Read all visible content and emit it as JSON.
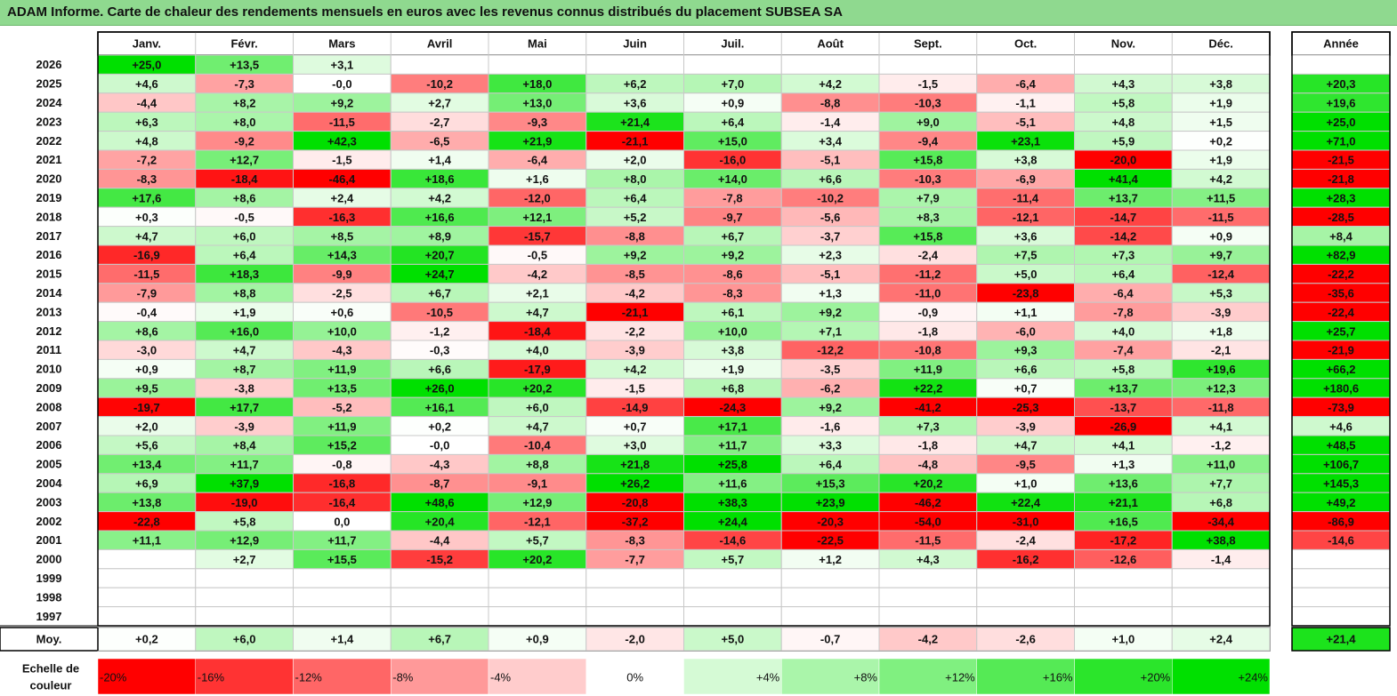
{
  "title": "ADAM Informe. Carte de chaleur des rendements mensuels en euros avec les revenus connus distribués du placement SUBSEA SA",
  "chart_data": {
    "type": "heatmap",
    "columns": [
      "Janv.",
      "Févr.",
      "Mars",
      "Avril",
      "Mai",
      "Juin",
      "Juil.",
      "Août",
      "Sept.",
      "Oct.",
      "Nov.",
      "Déc."
    ],
    "annual_header": "Année",
    "rows": [
      {
        "year": "2026",
        "cells": [
          "+25,0",
          "+13,5",
          "+3,1",
          "",
          "",
          "",
          "",
          "",
          "",
          "",
          "",
          ""
        ],
        "annual": ""
      },
      {
        "year": "2025",
        "cells": [
          "+4,6",
          "-7,3",
          "-0,0",
          "-10,2",
          "+18,0",
          "+6,2",
          "+7,0",
          "+4,2",
          "-1,5",
          "-6,4",
          "+4,3",
          "+3,8"
        ],
        "annual": "+20,3"
      },
      {
        "year": "2024",
        "cells": [
          "-4,4",
          "+8,2",
          "+9,2",
          "+2,7",
          "+13,0",
          "+3,6",
          "+0,9",
          "-8,8",
          "-10,3",
          "-1,1",
          "+5,8",
          "+1,9"
        ],
        "annual": "+19,6"
      },
      {
        "year": "2023",
        "cells": [
          "+6,3",
          "+8,0",
          "-11,5",
          "-2,7",
          "-9,3",
          "+21,4",
          "+6,4",
          "-1,4",
          "+9,0",
          "-5,1",
          "+4,8",
          "+1,5"
        ],
        "annual": "+25,0"
      },
      {
        "year": "2022",
        "cells": [
          "+4,8",
          "-9,2",
          "+42,3",
          "-6,5",
          "+21,9",
          "-21,1",
          "+15,0",
          "+3,4",
          "-9,4",
          "+23,1",
          "+5,9",
          "+0,2"
        ],
        "annual": "+71,0"
      },
      {
        "year": "2021",
        "cells": [
          "-7,2",
          "+12,7",
          "-1,5",
          "+1,4",
          "-6,4",
          "+2,0",
          "-16,0",
          "-5,1",
          "+15,8",
          "+3,8",
          "-20,0",
          "+1,9"
        ],
        "annual": "-21,5"
      },
      {
        "year": "2020",
        "cells": [
          "-8,3",
          "-18,4",
          "-46,4",
          "+18,6",
          "+1,6",
          "+8,0",
          "+14,0",
          "+6,6",
          "-10,3",
          "-6,9",
          "+41,4",
          "+4,2"
        ],
        "annual": "-21,8"
      },
      {
        "year": "2019",
        "cells": [
          "+17,6",
          "+8,6",
          "+2,4",
          "+4,2",
          "-12,0",
          "+6,4",
          "-7,8",
          "-10,2",
          "+7,9",
          "-11,4",
          "+13,7",
          "+11,5"
        ],
        "annual": "+28,3"
      },
      {
        "year": "2018",
        "cells": [
          "+0,3",
          "-0,5",
          "-16,3",
          "+16,6",
          "+12,1",
          "+5,2",
          "-9,7",
          "-5,6",
          "+8,3",
          "-12,1",
          "-14,7",
          "-11,5"
        ],
        "annual": "-28,5"
      },
      {
        "year": "2017",
        "cells": [
          "+4,7",
          "+6,0",
          "+8,5",
          "+8,9",
          "-15,7",
          "-8,8",
          "+6,7",
          "-3,7",
          "+15,8",
          "+3,6",
          "-14,2",
          "+0,9"
        ],
        "annual": "+8,4"
      },
      {
        "year": "2016",
        "cells": [
          "-16,9",
          "+6,4",
          "+14,3",
          "+20,7",
          "-0,5",
          "+9,2",
          "+9,2",
          "+2,3",
          "-2,4",
          "+7,5",
          "+7,3",
          "+9,7"
        ],
        "annual": "+82,9"
      },
      {
        "year": "2015",
        "cells": [
          "-11,5",
          "+18,3",
          "-9,9",
          "+24,7",
          "-4,2",
          "-8,5",
          "-8,6",
          "-5,1",
          "-11,2",
          "+5,0",
          "+6,4",
          "-12,4"
        ],
        "annual": "-22,2"
      },
      {
        "year": "2014",
        "cells": [
          "-7,9",
          "+8,8",
          "-2,5",
          "+6,7",
          "+2,1",
          "-4,2",
          "-8,3",
          "+1,3",
          "-11,0",
          "-23,8",
          "-6,4",
          "+5,3"
        ],
        "annual": "-35,6"
      },
      {
        "year": "2013",
        "cells": [
          "-0,4",
          "+1,9",
          "+0,6",
          "-10,5",
          "+4,7",
          "-21,1",
          "+6,1",
          "+9,2",
          "-0,9",
          "+1,1",
          "-7,8",
          "-3,9"
        ],
        "annual": "-22,4"
      },
      {
        "year": "2012",
        "cells": [
          "+8,6",
          "+16,0",
          "+10,0",
          "-1,2",
          "-18,4",
          "-2,2",
          "+10,0",
          "+7,1",
          "-1,8",
          "-6,0",
          "+4,0",
          "+1,8"
        ],
        "annual": "+25,7"
      },
      {
        "year": "2011",
        "cells": [
          "-3,0",
          "+4,7",
          "-4,3",
          "-0,3",
          "+4,0",
          "-3,9",
          "+3,8",
          "-12,2",
          "-10,8",
          "+9,3",
          "-7,4",
          "-2,1"
        ],
        "annual": "-21,9"
      },
      {
        "year": "2010",
        "cells": [
          "+0,9",
          "+8,7",
          "+11,9",
          "+6,6",
          "-17,9",
          "+4,2",
          "+1,9",
          "-3,5",
          "+11,9",
          "+6,6",
          "+5,8",
          "+19,6"
        ],
        "annual": "+66,2"
      },
      {
        "year": "2009",
        "cells": [
          "+9,5",
          "-3,8",
          "+13,5",
          "+26,0",
          "+20,2",
          "-1,5",
          "+6,8",
          "-6,2",
          "+22,2",
          "+0,7",
          "+13,7",
          "+12,3"
        ],
        "annual": "+180,6"
      },
      {
        "year": "2008",
        "cells": [
          "-19,7",
          "+17,7",
          "-5,2",
          "+16,1",
          "+6,0",
          "-14,9",
          "-24,3",
          "+9,2",
          "-41,2",
          "-25,3",
          "-13,7",
          "-11,8"
        ],
        "annual": "-73,9"
      },
      {
        "year": "2007",
        "cells": [
          "+2,0",
          "-3,9",
          "+11,9",
          "+0,2",
          "+4,7",
          "+0,7",
          "+17,1",
          "-1,6",
          "+7,3",
          "-3,9",
          "-26,9",
          "+4,1"
        ],
        "annual": "+4,6"
      },
      {
        "year": "2006",
        "cells": [
          "+5,6",
          "+8,4",
          "+15,2",
          "-0,0",
          "-10,4",
          "+3,0",
          "+11,7",
          "+3,3",
          "-1,8",
          "+4,7",
          "+4,1",
          "-1,2"
        ],
        "annual": "+48,5"
      },
      {
        "year": "2005",
        "cells": [
          "+13,4",
          "+11,7",
          "-0,8",
          "-4,3",
          "+8,8",
          "+21,8",
          "+25,8",
          "+6,4",
          "-4,8",
          "-9,5",
          "+1,3",
          "+11,0"
        ],
        "annual": "+106,7"
      },
      {
        "year": "2004",
        "cells": [
          "+6,9",
          "+37,9",
          "-16,8",
          "-8,7",
          "-9,1",
          "+26,2",
          "+11,6",
          "+15,3",
          "+20,2",
          "+1,0",
          "+13,6",
          "+7,7"
        ],
        "annual": "+145,3"
      },
      {
        "year": "2003",
        "cells": [
          "+13,8",
          "-19,0",
          "-16,4",
          "+48,6",
          "+12,9",
          "-20,8",
          "+38,3",
          "+23,9",
          "-46,2",
          "+22,4",
          "+21,1",
          "+6,8"
        ],
        "annual": "+49,2"
      },
      {
        "year": "2002",
        "cells": [
          "-22,8",
          "+5,8",
          "0,0",
          "+20,4",
          "-12,1",
          "-37,2",
          "+24,4",
          "-20,3",
          "-54,0",
          "-31,0",
          "+16,5",
          "-34,4"
        ],
        "annual": "-86,9"
      },
      {
        "year": "2001",
        "cells": [
          "+11,1",
          "+12,9",
          "+11,7",
          "-4,4",
          "+5,7",
          "-8,3",
          "-14,6",
          "-22,5",
          "-11,5",
          "-2,4",
          "-17,2",
          "+38,8"
        ],
        "annual": "-14,6"
      },
      {
        "year": "2000",
        "cells": [
          "",
          "+2,7",
          "+15,5",
          "-15,2",
          "+20,2",
          "-7,7",
          "+5,7",
          "+1,2",
          "+4,3",
          "-16,2",
          "-12,6",
          "-1,4"
        ],
        "annual": ""
      },
      {
        "year": "1999",
        "cells": [
          "",
          "",
          "",
          "",
          "",
          "",
          "",
          "",
          "",
          "",
          "",
          ""
        ],
        "annual": ""
      },
      {
        "year": "1998",
        "cells": [
          "",
          "",
          "",
          "",
          "",
          "",
          "",
          "",
          "",
          "",
          "",
          ""
        ],
        "annual": ""
      },
      {
        "year": "1997",
        "cells": [
          "",
          "",
          "",
          "",
          "",
          "",
          "",
          "",
          "",
          "",
          "",
          ""
        ],
        "annual": ""
      }
    ],
    "average": {
      "label": "Moy.",
      "cells": [
        "+0,2",
        "+6,0",
        "+1,4",
        "+6,7",
        "+0,9",
        "-2,0",
        "+5,0",
        "-0,7",
        "-4,2",
        "-2,6",
        "+1,0",
        "+2,4"
      ],
      "annual": "+21,4"
    },
    "scale": {
      "label_line1": "Echelle de",
      "label_line2": "couleur",
      "steps": [
        "-20%",
        "-16%",
        "-12%",
        "-8%",
        "-4%",
        "0%",
        "+4%",
        "+8%",
        "+12%",
        "+16%",
        "+20%",
        "+24%"
      ],
      "step_values": [
        -20,
        -16,
        -12,
        -8,
        -4,
        0,
        4,
        8,
        12,
        16,
        20,
        24
      ]
    },
    "colors": {
      "negative": "#ff0000",
      "positive": "#00e000",
      "neutral": "#ffffff",
      "title_bg": "#8fd98f"
    }
  }
}
